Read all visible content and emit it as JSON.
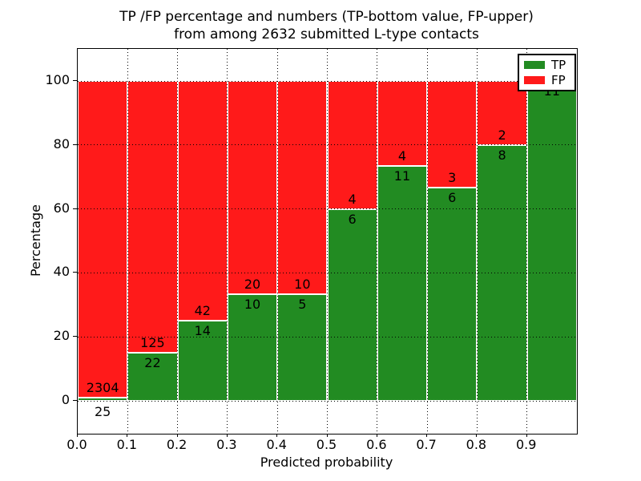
{
  "chart_data": {
    "type": "bar",
    "stacked": true,
    "normalized": "percent",
    "title_line1": "TP /FP percentage and numbers (TP-bottom value, FP-upper)",
    "title_line2": "from among 2632 submitted L-type contacts",
    "xlabel": "Predicted probability",
    "ylabel": "Percentage",
    "total_contacts": 2632,
    "x_tick_labels": [
      "0.0",
      "0.1",
      "0.2",
      "0.3",
      "0.4",
      "0.5",
      "0.6",
      "0.7",
      "0.8",
      "0.9"
    ],
    "y_ticks": [
      0,
      20,
      40,
      60,
      80,
      100
    ],
    "xlim": [
      0.0,
      1.0
    ],
    "ylim": [
      -10.3,
      110.0
    ],
    "grid": true,
    "bar_width": 0.1,
    "colors": {
      "tp": "#228B22",
      "fp": "#FF1A1A"
    },
    "legend": {
      "position": "upper right",
      "entries": [
        {
          "label": "TP",
          "color": "#228B22"
        },
        {
          "label": "FP",
          "color": "#FF1A1A"
        }
      ]
    },
    "bins": [
      {
        "range": [
          0.0,
          0.1
        ],
        "tp": 25,
        "fp": 2304,
        "tp_pct": 1.07
      },
      {
        "range": [
          0.1,
          0.2
        ],
        "tp": 22,
        "fp": 125,
        "tp_pct": 14.97
      },
      {
        "range": [
          0.2,
          0.3
        ],
        "tp": 14,
        "fp": 42,
        "tp_pct": 25.0
      },
      {
        "range": [
          0.3,
          0.4
        ],
        "tp": 10,
        "fp": 20,
        "tp_pct": 33.33
      },
      {
        "range": [
          0.4,
          0.5
        ],
        "tp": 5,
        "fp": 10,
        "tp_pct": 33.33
      },
      {
        "range": [
          0.5,
          0.6
        ],
        "tp": 6,
        "fp": 4,
        "tp_pct": 60.0
      },
      {
        "range": [
          0.6,
          0.7
        ],
        "tp": 11,
        "fp": 4,
        "tp_pct": 73.33
      },
      {
        "range": [
          0.7,
          0.8
        ],
        "tp": 6,
        "fp": 3,
        "tp_pct": 66.67
      },
      {
        "range": [
          0.8,
          0.9
        ],
        "tp": 8,
        "fp": 2,
        "tp_pct": 80.0
      },
      {
        "range": [
          0.9,
          1.0
        ],
        "tp": 11,
        "fp": 0,
        "tp_pct": 100.0
      }
    ]
  }
}
